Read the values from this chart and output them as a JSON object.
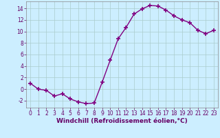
{
  "x": [
    0,
    1,
    2,
    3,
    4,
    5,
    6,
    7,
    8,
    9,
    10,
    11,
    12,
    13,
    14,
    15,
    16,
    17,
    18,
    19,
    20,
    21,
    22,
    23
  ],
  "y": [
    1,
    0,
    -0.2,
    -1.2,
    -0.8,
    -1.7,
    -2.2,
    -2.5,
    -2.4,
    1.2,
    5.0,
    8.7,
    10.7,
    13.0,
    13.9,
    14.5,
    14.4,
    13.7,
    12.7,
    12.0,
    11.5,
    10.2,
    9.6,
    10.2
  ],
  "line_color": "#800080",
  "marker": "+",
  "marker_size": 4,
  "marker_lw": 1.2,
  "line_width": 1.0,
  "bg_color": "#cceeff",
  "grid_color": "#aacccc",
  "xlabel": "Windchill (Refroidissement éolien,°C)",
  "xlim": [
    -0.5,
    23.5
  ],
  "ylim": [
    -3.2,
    15.2
  ],
  "yticks": [
    -2,
    0,
    2,
    4,
    6,
    8,
    10,
    12,
    14
  ],
  "xticks": [
    0,
    1,
    2,
    3,
    4,
    5,
    6,
    7,
    8,
    9,
    10,
    11,
    12,
    13,
    14,
    15,
    16,
    17,
    18,
    19,
    20,
    21,
    22,
    23
  ],
  "tick_fontsize": 5.5,
  "xlabel_fontsize": 6.5,
  "label_color": "#660066"
}
